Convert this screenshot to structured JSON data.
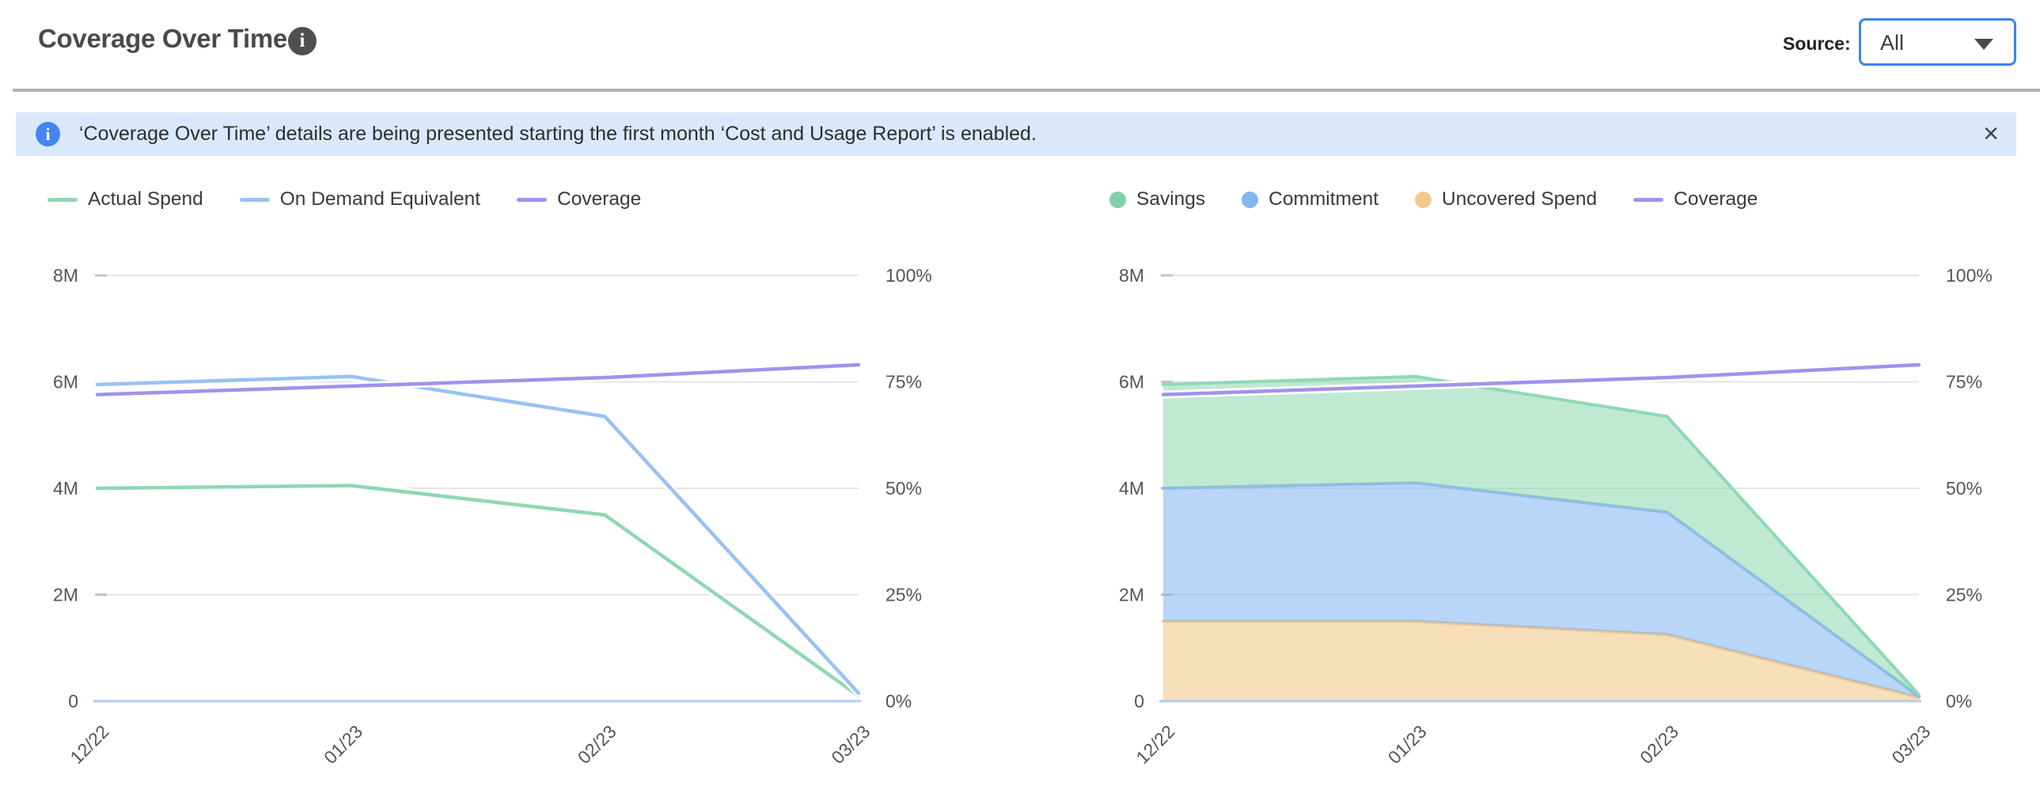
{
  "header": {
    "title": "Coverage Over Time",
    "info_icon": "i",
    "source_label": "Source:",
    "source_value": "All"
  },
  "banner": {
    "icon": "i",
    "text": "‘Coverage Over Time’ details are being presented starting the first month ‘Cost and Usage Report’ is enabled.",
    "close_label": "×"
  },
  "colors": {
    "accent_blue": "#3b82f6",
    "banner_bg": "#dbe8fb",
    "gridline": "#e5e5e5",
    "tick": "#c4c4c4",
    "baseline": "#b9c9ef",
    "axis_text": "#555555"
  },
  "chart_data": [
    {
      "id": "coverage-line-chart",
      "type": "line",
      "categories": [
        "12/22",
        "01/23",
        "02/23",
        "03/23"
      ],
      "series": [
        {
          "name": "Actual Spend",
          "axis": "left",
          "unit": "M",
          "color": "#90d7b4",
          "values": [
            4.0,
            4.05,
            3.5,
            0.1
          ]
        },
        {
          "name": "On Demand Equivalent",
          "axis": "left",
          "unit": "M",
          "color": "#97c2f2",
          "values": [
            5.95,
            6.1,
            5.35,
            0.15
          ]
        },
        {
          "name": "Coverage",
          "axis": "right",
          "unit": "%",
          "color": "#a192ec",
          "values": [
            72,
            74,
            76,
            79
          ]
        }
      ],
      "left_axis": {
        "ticks": [
          "8M",
          "6M",
          "4M",
          "2M",
          "0"
        ],
        "min": 0,
        "max": 8,
        "unit": "millions"
      },
      "right_axis": {
        "ticks": [
          "100%",
          "75%",
          "50%",
          "25%",
          "0%"
        ],
        "min": 0,
        "max": 100,
        "unit": "%"
      },
      "grid": true,
      "legend_position": "top",
      "legend": [
        {
          "label": "Actual Spend",
          "swatch": "dash",
          "color": "#90d7b4"
        },
        {
          "label": "On Demand Equivalent",
          "swatch": "dash",
          "color": "#97c2f2"
        },
        {
          "label": "Coverage",
          "swatch": "dash",
          "color": "#a192ec"
        }
      ]
    },
    {
      "id": "coverage-area-chart",
      "type": "area",
      "stacked": true,
      "categories": [
        "12/22",
        "01/23",
        "02/23",
        "03/23"
      ],
      "series": [
        {
          "name": "Uncovered Spend",
          "axis": "left",
          "unit": "M",
          "stack": true,
          "fill": "rgba(238,194,126,0.55)",
          "edge": "#ecc892",
          "values": [
            1.5,
            1.5,
            1.25,
            0.07
          ]
        },
        {
          "name": "Commitment",
          "axis": "left",
          "unit": "M",
          "stack": true,
          "fill": "rgba(127,179,240,0.55)",
          "edge": "#90baf1",
          "values": [
            2.5,
            2.6,
            2.3,
            0.02
          ]
        },
        {
          "name": "Savings",
          "axis": "left",
          "unit": "M",
          "stack": true,
          "fill": "rgba(127,211,168,0.5)",
          "edge": "#8fd9b5",
          "values": [
            1.95,
            2.0,
            1.8,
            0.03
          ]
        },
        {
          "name": "Coverage",
          "axis": "right",
          "unit": "%",
          "line": true,
          "color": "#a192ec",
          "values": [
            72,
            74,
            76,
            79
          ]
        }
      ],
      "left_axis": {
        "ticks": [
          "8M",
          "6M",
          "4M",
          "2M",
          "0"
        ],
        "min": 0,
        "max": 8,
        "unit": "millions"
      },
      "right_axis": {
        "ticks": [
          "100%",
          "75%",
          "50%",
          "25%",
          "0%"
        ],
        "min": 0,
        "max": 100,
        "unit": "%"
      },
      "grid": true,
      "legend_position": "top",
      "legend": [
        {
          "label": "Savings",
          "swatch": "circle",
          "color": "#83d1a8"
        },
        {
          "label": "Commitment",
          "swatch": "circle",
          "color": "#84b7f1"
        },
        {
          "label": "Uncovered Spend",
          "swatch": "circle",
          "color": "#f1c98d"
        },
        {
          "label": "Coverage",
          "swatch": "dash",
          "color": "#a192ec"
        }
      ]
    }
  ]
}
